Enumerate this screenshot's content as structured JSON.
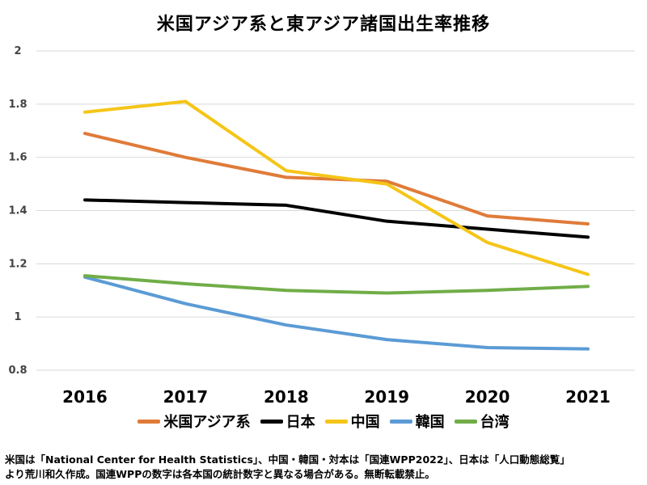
{
  "chart_data": {
    "type": "line",
    "title": "米国アジア系と東アジア諸国出生率推移",
    "categories": [
      "2016",
      "2017",
      "2018",
      "2019",
      "2020",
      "2021"
    ],
    "ylim": [
      0.8,
      2.0
    ],
    "yticks": [
      "0.8",
      "1",
      "1.2",
      "1.4",
      "1.6",
      "1.8",
      "2"
    ],
    "ytick_values": [
      0.8,
      1.0,
      1.2,
      1.4,
      1.6,
      1.8,
      2.0
    ],
    "grid": true,
    "legend_position": "bottom",
    "series": [
      {
        "name": "米国アジア系",
        "color": "#E07B39",
        "values": [
          1.69,
          1.6,
          1.525,
          1.51,
          1.38,
          1.35
        ]
      },
      {
        "name": "日本",
        "color": "#000000",
        "values": [
          1.44,
          1.43,
          1.42,
          1.36,
          1.33,
          1.3
        ]
      },
      {
        "name": "中国",
        "color": "#F5C518",
        "values": [
          1.77,
          1.81,
          1.55,
          1.5,
          1.28,
          1.16
        ]
      },
      {
        "name": "韓国",
        "color": "#5B9BD5",
        "values": [
          1.15,
          1.05,
          0.97,
          0.915,
          0.885,
          0.88
        ]
      },
      {
        "name": "台湾",
        "color": "#70AD47",
        "values": [
          1.155,
          1.125,
          1.1,
          1.09,
          1.1,
          1.115
        ]
      }
    ]
  },
  "note": {
    "line1": "米国は「National Center for Health Statistics」、中国・韓国・対本は「国連WPP2022」、日本は「人口動態総覧」",
    "line2": "より荒川和久作成。国連WPPの数字は各本国の統計数字と異なる場合がある。無断転載禁止。"
  }
}
